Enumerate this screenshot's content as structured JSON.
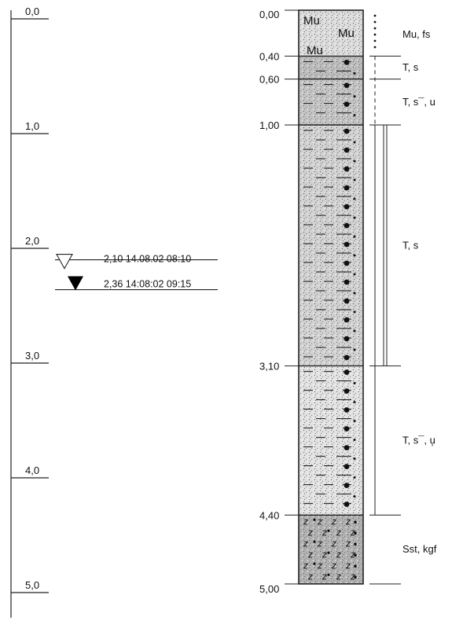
{
  "depth_scale": {
    "ticks": [
      "0,0",
      "1,0",
      "2,0",
      "3,0",
      "4,0",
      "5,0"
    ]
  },
  "groundwater": [
    {
      "marker": "open-triangle-icon",
      "label": "2,10 14.08.02 08:10",
      "depth_m": 2.1
    },
    {
      "marker": "filled-triangle-icon",
      "label": "2,36 14:08:02 09:15",
      "depth_m": 2.36
    }
  ],
  "layers": [
    {
      "top_label": "0,00",
      "top_m": 0.0,
      "bottom_m": 0.4,
      "desc": "Mu, fs",
      "pattern": "Mu",
      "shade": "#dcdcdc"
    },
    {
      "top_label": "0,40",
      "top_m": 0.4,
      "bottom_m": 0.6,
      "desc": "T, s",
      "pattern": "T",
      "shade": "#bdbdbd"
    },
    {
      "top_label": "0,60",
      "top_m": 0.6,
      "bottom_m": 1.0,
      "desc": "T, s¯, u",
      "pattern": "T",
      "shade": "#c4c4c4"
    },
    {
      "top_label": "1,00",
      "top_m": 1.0,
      "bottom_m": 3.1,
      "desc": "T, s",
      "pattern": "T",
      "shade": "#d2d2d2"
    },
    {
      "top_label": "3,10",
      "top_m": 3.1,
      "bottom_m": 4.4,
      "desc": "T, s¯, u̦",
      "pattern": "T",
      "shade": "#e2e2e2"
    },
    {
      "top_label": "4,40",
      "top_m": 4.4,
      "bottom_m": 5.0,
      "desc": "Sst, kgf",
      "pattern": "Sst",
      "shade": "#b2b2b2"
    }
  ],
  "final_depth_label": "5,00",
  "fill_glyph": "Mu",
  "sst_glyph": "z"
}
